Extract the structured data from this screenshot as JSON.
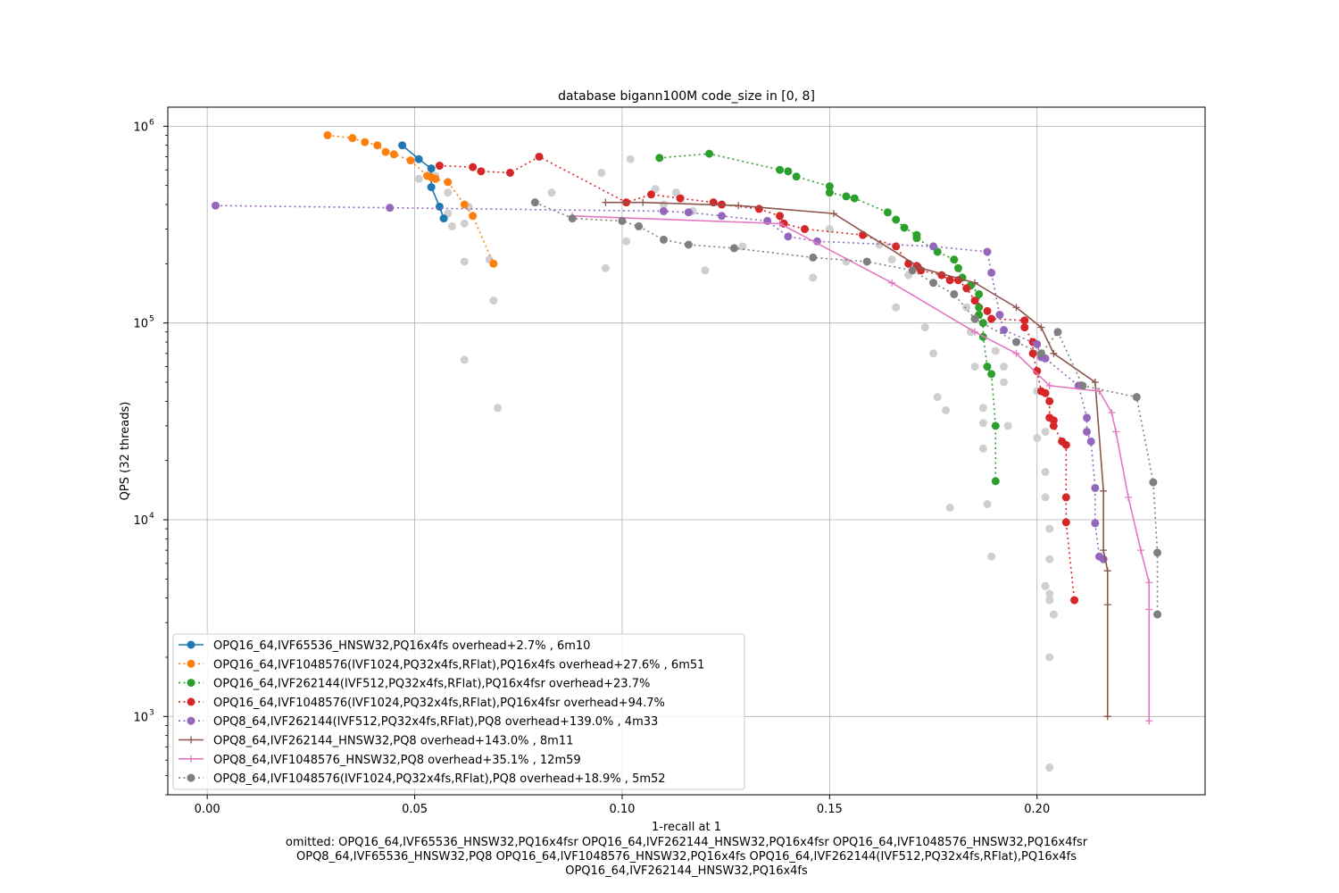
{
  "chart_data": {
    "type": "scatter",
    "title": "database bigann100M code_size in [0, 8]",
    "xlabel": "1-recall at 1",
    "ylabel": "QPS (32 threads)",
    "xlim": [
      -0.0095,
      0.2405
    ],
    "ylim": [
      400,
      1250000
    ],
    "yscale": "log",
    "xticks": [
      {
        "value": 0.0,
        "label": "0.00"
      },
      {
        "value": 0.05,
        "label": "0.05"
      },
      {
        "value": 0.1,
        "label": "0.10"
      },
      {
        "value": 0.15,
        "label": "0.15"
      },
      {
        "value": 0.2,
        "label": "0.20"
      }
    ],
    "yticks": [
      {
        "value": 1000,
        "base": "10",
        "exp": "3"
      },
      {
        "value": 10000,
        "base": "10",
        "exp": "4"
      },
      {
        "value": 100000,
        "base": "10",
        "exp": "5"
      },
      {
        "value": 1000000,
        "base": "10",
        "exp": "6"
      }
    ],
    "grid": true,
    "legend_position": "lower-left",
    "omitted_lines": [
      "omitted: OPQ16_64,IVF65536_HNSW32,PQ16x4fsr OPQ16_64,IVF262144_HNSW32,PQ16x4fsr OPQ16_64,IVF1048576_HNSW32,PQ16x4fsr",
      "OPQ8_64,IVF65536_HNSW32,PQ8 OPQ16_64,IVF1048576_HNSW32,PQ16x4fs OPQ16_64,IVF262144(IVF512,PQ32x4fs,RFlat),PQ16x4fs",
      "OPQ16_64,IVF262144_HNSW32,PQ16x4fs"
    ],
    "background_points": [
      [
        0.051,
        540000
      ],
      [
        0.055,
        560000
      ],
      [
        0.058,
        460000
      ],
      [
        0.058,
        360000
      ],
      [
        0.059,
        310000
      ],
      [
        0.063,
        390000
      ],
      [
        0.062,
        320000
      ],
      [
        0.062,
        205000
      ],
      [
        0.062,
        65000
      ],
      [
        0.068,
        210000
      ],
      [
        0.069,
        130000
      ],
      [
        0.07,
        37000
      ],
      [
        0.083,
        460000
      ],
      [
        0.095,
        580000
      ],
      [
        0.096,
        190000
      ],
      [
        0.101,
        260000
      ],
      [
        0.102,
        680000
      ],
      [
        0.108,
        480000
      ],
      [
        0.11,
        400000
      ],
      [
        0.113,
        460000
      ],
      [
        0.117,
        370000
      ],
      [
        0.12,
        185000
      ],
      [
        0.129,
        245000
      ],
      [
        0.146,
        170000
      ],
      [
        0.15,
        300000
      ],
      [
        0.154,
        205000
      ],
      [
        0.162,
        250000
      ],
      [
        0.165,
        210000
      ],
      [
        0.166,
        120000
      ],
      [
        0.169,
        175000
      ],
      [
        0.173,
        95000
      ],
      [
        0.175,
        70000
      ],
      [
        0.176,
        42000
      ],
      [
        0.178,
        36000
      ],
      [
        0.179,
        11500
      ],
      [
        0.18,
        140000
      ],
      [
        0.183,
        120000
      ],
      [
        0.184,
        90000
      ],
      [
        0.185,
        60000
      ],
      [
        0.187,
        37000
      ],
      [
        0.187,
        31000
      ],
      [
        0.187,
        23000
      ],
      [
        0.188,
        12000
      ],
      [
        0.189,
        6500
      ],
      [
        0.19,
        72000
      ],
      [
        0.192,
        60000
      ],
      [
        0.192,
        50000
      ],
      [
        0.193,
        30000
      ],
      [
        0.2,
        45000
      ],
      [
        0.2,
        26000
      ],
      [
        0.202,
        28000
      ],
      [
        0.202,
        17500
      ],
      [
        0.202,
        13000
      ],
      [
        0.203,
        9000
      ],
      [
        0.203,
        6300
      ],
      [
        0.202,
        4600
      ],
      [
        0.203,
        4200
      ],
      [
        0.203,
        3900
      ],
      [
        0.204,
        3300
      ],
      [
        0.203,
        2000
      ],
      [
        0.203,
        550
      ]
    ],
    "series": [
      {
        "name": "OPQ16_64,IVF65536_HNSW32,PQ16x4fs overhead+2.7% , 6m10",
        "color": "#1f77b4",
        "linestyle": "solid",
        "marker": "circle",
        "x": [
          0.047,
          0.051,
          0.054,
          0.054,
          0.056,
          0.057
        ],
        "y": [
          800000,
          680000,
          610000,
          490000,
          390000,
          340000
        ]
      },
      {
        "name": "OPQ16_64,IVF1048576(IVF1024,PQ32x4fs,RFlat),PQ16x4fs overhead+27.6% , 6m51",
        "color": "#ff7f0e",
        "linestyle": "dotted",
        "marker": "circle",
        "x": [
          0.029,
          0.035,
          0.038,
          0.041,
          0.043,
          0.045,
          0.049,
          0.053,
          0.054,
          0.055,
          0.058,
          0.062,
          0.064,
          0.069
        ],
        "y": [
          900000,
          870000,
          830000,
          800000,
          740000,
          720000,
          670000,
          560000,
          550000,
          540000,
          520000,
          400000,
          350000,
          200000
        ]
      },
      {
        "name": "OPQ16_64,IVF262144(IVF512,PQ32x4fs,RFlat),PQ16x4fsr overhead+23.7%",
        "color": "#2ca02c",
        "linestyle": "dotted",
        "marker": "circle",
        "x": [
          0.109,
          0.121,
          0.138,
          0.14,
          0.142,
          0.15,
          0.15,
          0.154,
          0.156,
          0.164,
          0.166,
          0.168,
          0.171,
          0.171,
          0.176,
          0.18,
          0.181,
          0.182,
          0.184,
          0.186,
          0.186,
          0.186,
          0.187,
          0.187,
          0.188,
          0.189,
          0.19,
          0.19
        ],
        "y": [
          690000,
          725000,
          600000,
          590000,
          555000,
          495000,
          460000,
          440000,
          430000,
          365000,
          335000,
          305000,
          280000,
          270000,
          230000,
          210000,
          190000,
          170000,
          155000,
          140000,
          120000,
          110000,
          100000,
          85000,
          60000,
          55000,
          30000,
          15700
        ]
      },
      {
        "name": "OPQ16_64,IVF1048576(IVF1024,PQ32x4fs,RFlat),PQ16x4fsr overhead+94.7%",
        "color": "#d62728",
        "linestyle": "dotted",
        "marker": "circle",
        "x": [
          0.056,
          0.064,
          0.066,
          0.073,
          0.08,
          0.101,
          0.107,
          0.114,
          0.122,
          0.124,
          0.133,
          0.138,
          0.139,
          0.144,
          0.158,
          0.166,
          0.169,
          0.171,
          0.172,
          0.177,
          0.179,
          0.181,
          0.183,
          0.185,
          0.188,
          0.189,
          0.197,
          0.197,
          0.199,
          0.199,
          0.2,
          0.201,
          0.202,
          0.203,
          0.203,
          0.204,
          0.204,
          0.206,
          0.207,
          0.207,
          0.207,
          0.209
        ],
        "y": [
          630000,
          620000,
          590000,
          580000,
          700000,
          410000,
          450000,
          430000,
          410000,
          400000,
          380000,
          350000,
          320000,
          300000,
          280000,
          245000,
          200000,
          195000,
          185000,
          175000,
          165000,
          165000,
          150000,
          130000,
          115000,
          105000,
          103000,
          95000,
          80000,
          70000,
          57000,
          45000,
          44000,
          40000,
          33000,
          32000,
          30000,
          25000,
          24000,
          13000,
          9700,
          3900
        ]
      },
      {
        "name": "OPQ8_64,IVF262144(IVF512,PQ32x4fs,RFlat),PQ8 overhead+139.0% , 4m33",
        "color": "#9467bd",
        "linestyle": "dotted",
        "marker": "circle",
        "x": [
          0.002,
          0.044,
          0.11,
          0.116,
          0.124,
          0.135,
          0.14,
          0.147,
          0.175,
          0.188,
          0.189,
          0.191,
          0.192,
          0.2,
          0.201,
          0.202,
          0.21,
          0.212,
          0.212,
          0.213,
          0.214,
          0.214,
          0.215,
          0.216
        ],
        "y": [
          395000,
          385000,
          370000,
          365000,
          350000,
          330000,
          275000,
          260000,
          245000,
          230000,
          180000,
          110000,
          92000,
          78000,
          67000,
          66000,
          48000,
          33000,
          28000,
          25000,
          14500,
          9600,
          6500,
          6300
        ]
      },
      {
        "name": "OPQ8_64,IVF262144_HNSW32,PQ8 overhead+143.0% , 8m11",
        "color": "#8c564b",
        "linestyle": "solid",
        "marker": "plus",
        "x": [
          0.096,
          0.105,
          0.128,
          0.151,
          0.172,
          0.185,
          0.195,
          0.201,
          0.204,
          0.214,
          0.216,
          0.216,
          0.217,
          0.217,
          0.217
        ],
        "y": [
          410000,
          410000,
          395000,
          360000,
          190000,
          160000,
          120000,
          95000,
          70000,
          50000,
          14000,
          7000,
          5500,
          3700,
          1000
        ]
      },
      {
        "name": "OPQ8_64,IVF1048576_HNSW32,PQ8 overhead+35.1% , 12m59",
        "color": "#e377c2",
        "linestyle": "solid",
        "marker": "plus",
        "x": [
          0.088,
          0.138,
          0.165,
          0.185,
          0.195,
          0.203,
          0.215,
          0.218,
          0.219,
          0.222,
          0.225,
          0.227,
          0.227,
          0.227
        ],
        "y": [
          350000,
          320000,
          160000,
          90000,
          70000,
          48000,
          45000,
          35000,
          28000,
          13000,
          7000,
          4800,
          3500,
          950
        ]
      },
      {
        "name": "OPQ8_64,IVF1048576(IVF1024,PQ32x4fs,RFlat),PQ8 overhead+18.9% , 5m52",
        "color": "#7f7f7f",
        "linestyle": "dotted",
        "marker": "circle",
        "x": [
          0.079,
          0.088,
          0.1,
          0.104,
          0.11,
          0.116,
          0.127,
          0.146,
          0.159,
          0.17,
          0.175,
          0.18,
          0.185,
          0.195,
          0.201,
          0.205,
          0.211,
          0.224,
          0.228,
          0.229,
          0.229
        ],
        "y": [
          410000,
          340000,
          330000,
          310000,
          265000,
          250000,
          240000,
          215000,
          205000,
          185000,
          160000,
          140000,
          105000,
          80000,
          70000,
          90000,
          48000,
          42000,
          15500,
          6800,
          3300
        ]
      }
    ]
  }
}
